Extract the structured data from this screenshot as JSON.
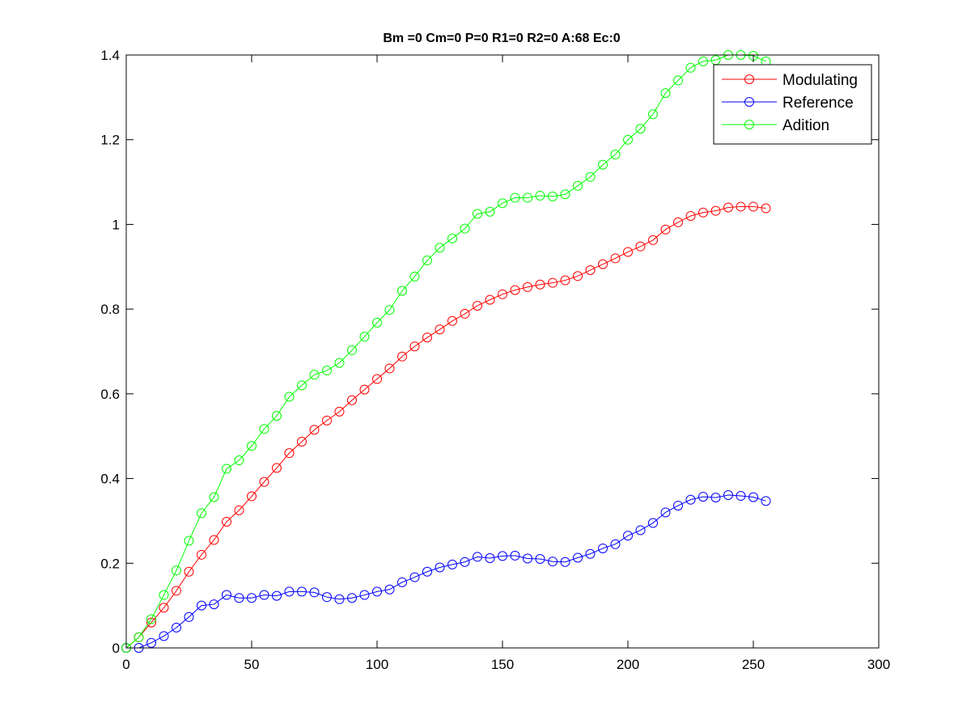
{
  "chart_data": {
    "type": "line",
    "title": "Bm =0  Cm=0  P=0  R1=0  R2=0  A:68  Ec:0",
    "xlabel": "",
    "ylabel": "",
    "xlim": [
      0,
      300
    ],
    "ylim": [
      0,
      1.4
    ],
    "xticks": [
      "0",
      "50",
      "100",
      "150",
      "200",
      "250",
      "300"
    ],
    "yticks": [
      "0",
      "0.2",
      "0.4",
      "0.6",
      "0.8",
      "1",
      "1.2",
      "1.4"
    ],
    "grid": false,
    "legend_position": "top-right",
    "marker": "circle",
    "x": [
      0,
      5,
      10,
      15,
      20,
      25,
      30,
      35,
      40,
      45,
      50,
      55,
      60,
      65,
      70,
      75,
      80,
      85,
      90,
      95,
      100,
      105,
      110,
      115,
      120,
      125,
      130,
      135,
      140,
      145,
      150,
      155,
      160,
      165,
      170,
      175,
      180,
      185,
      190,
      195,
      200,
      205,
      210,
      215,
      220,
      225,
      230,
      235,
      240,
      245,
      250,
      255
    ],
    "series": [
      {
        "name": "Modulating",
        "color": "#ff0000",
        "values": [
          0,
          0.025,
          0.06,
          0.095,
          0.135,
          0.18,
          0.22,
          0.255,
          0.298,
          0.325,
          0.358,
          0.392,
          0.425,
          0.46,
          0.487,
          0.515,
          0.537,
          0.558,
          0.585,
          0.61,
          0.635,
          0.66,
          0.688,
          0.712,
          0.733,
          0.752,
          0.772,
          0.789,
          0.808,
          0.822,
          0.835,
          0.845,
          0.852,
          0.858,
          0.862,
          0.868,
          0.878,
          0.892,
          0.906,
          0.92,
          0.935,
          0.948,
          0.963,
          0.988,
          1.005,
          1.02,
          1.028,
          1.032,
          1.04,
          1.042,
          1.042,
          1.038
        ]
      },
      {
        "name": "Reference",
        "color": "#0000ff",
        "values": [
          0,
          0.0,
          0.012,
          0.028,
          0.048,
          0.073,
          0.1,
          0.103,
          0.125,
          0.118,
          0.118,
          0.125,
          0.123,
          0.133,
          0.133,
          0.131,
          0.12,
          0.115,
          0.118,
          0.125,
          0.133,
          0.138,
          0.155,
          0.167,
          0.18,
          0.19,
          0.197,
          0.203,
          0.215,
          0.212,
          0.217,
          0.218,
          0.211,
          0.21,
          0.204,
          0.203,
          0.213,
          0.222,
          0.235,
          0.245,
          0.265,
          0.278,
          0.295,
          0.32,
          0.336,
          0.35,
          0.357,
          0.355,
          0.361,
          0.359,
          0.356,
          0.347
        ]
      },
      {
        "name": "Adition",
        "color": "#00ff00",
        "values": [
          0,
          0.025,
          0.068,
          0.125,
          0.183,
          0.253,
          0.318,
          0.356,
          0.423,
          0.443,
          0.477,
          0.517,
          0.548,
          0.593,
          0.62,
          0.645,
          0.655,
          0.673,
          0.703,
          0.735,
          0.768,
          0.798,
          0.843,
          0.877,
          0.915,
          0.945,
          0.967,
          0.99,
          1.025,
          1.03,
          1.05,
          1.063,
          1.063,
          1.068,
          1.066,
          1.071,
          1.091,
          1.112,
          1.141,
          1.165,
          1.2,
          1.226,
          1.26,
          1.31,
          1.34,
          1.37,
          1.385,
          1.388,
          1.4,
          1.4,
          1.398,
          1.385
        ]
      }
    ]
  }
}
